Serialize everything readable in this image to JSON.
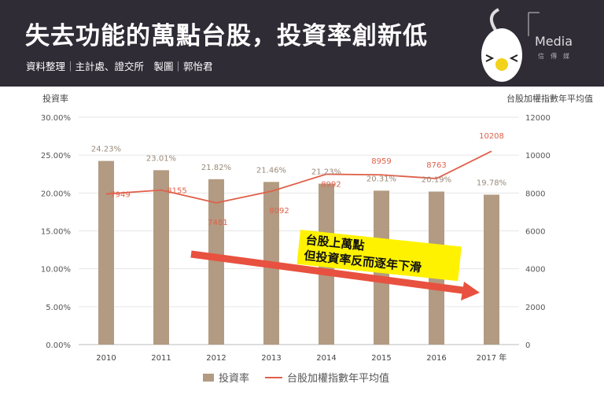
{
  "header": {
    "title": "失去功能的萬點台股，投資率創新低",
    "subtitle": "資料整理｜主計處、證交所　製圖｜郭怡君",
    "logo_text": "Media",
    "logo_sub": "信 傳 媒"
  },
  "callout": {
    "line1": "台股上萬點",
    "line2": "但投資率反而逐年下滑"
  },
  "chart_data": {
    "type": "bar+line",
    "categories": [
      "2010",
      "2011",
      "2012",
      "2013",
      "2014",
      "2015",
      "2016",
      "2017"
    ],
    "x_unit": "年",
    "series": [
      {
        "name": "投資率",
        "type": "bar",
        "axis": "left",
        "values": [
          24.23,
          23.01,
          21.82,
          21.46,
          21.23,
          20.31,
          20.19,
          19.78
        ],
        "labels": [
          "24.23%",
          "23.01%",
          "21.82%",
          "21.46%",
          "21.23%",
          "20.31%",
          "20.19%",
          "19.78%"
        ],
        "color": "#b29b82"
      },
      {
        "name": "台股加權指數年平均值",
        "type": "line",
        "axis": "right",
        "values": [
          7949,
          8155,
          7481,
          8092,
          8992,
          8959,
          8763,
          10208
        ],
        "color": "#e0604a"
      }
    ],
    "ylabel_left": "投資率",
    "ylabel_right": "台股加權指數年平均值",
    "ylim_left": [
      0,
      30
    ],
    "ylim_right": [
      0,
      12000
    ],
    "yticks_left": [
      "0.00%",
      "5.00%",
      "10.00%",
      "15.00%",
      "20.00%",
      "25.00%",
      "30.00%"
    ],
    "yticks_right": [
      "0",
      "2000",
      "4000",
      "6000",
      "8000",
      "10000",
      "12000"
    ],
    "grid": true,
    "legend": "bottom"
  }
}
